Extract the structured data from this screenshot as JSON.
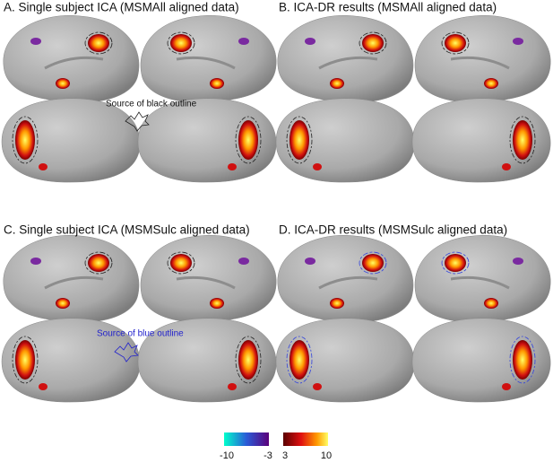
{
  "panels": [
    {
      "title": "A. Single subject ICA (MSMAll aligned data)"
    },
    {
      "title": "B. ICA-DR results (MSMAll aligned data)"
    },
    {
      "title": "C. Single subject ICA (MSMSulc aligned data)"
    },
    {
      "title": "D. ICA-DR results (MSMSulc aligned data)"
    }
  ],
  "annotations": {
    "black_outline": "Source of black outline",
    "blue_outline": "Source of blue outline"
  },
  "colorbar": {
    "negative_ticks": [
      -10,
      -3
    ],
    "positive_ticks": [
      3,
      10
    ]
  }
}
